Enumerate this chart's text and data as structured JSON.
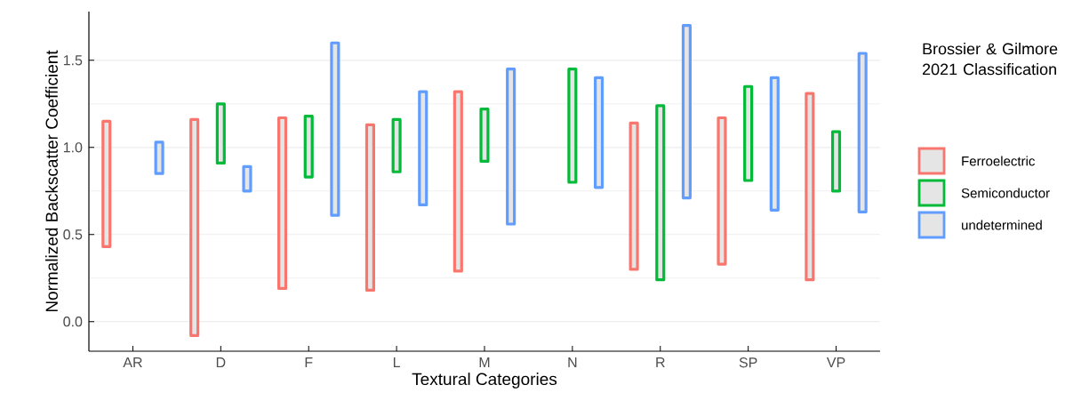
{
  "chart_data": {
    "type": "bar",
    "xlabel": "Textural Categories",
    "ylabel": "Normalized Backscatter Coefficient",
    "legend_title": "Brossier & Gilmore 2021 Classification",
    "categories": [
      "AR",
      "D",
      "F",
      "L",
      "M",
      "N",
      "R",
      "SP",
      "VP"
    ],
    "series": [
      {
        "name": "Ferroelectric",
        "color": "#f8766d",
        "base": [
          0.43,
          -0.08,
          0.19,
          0.18,
          0.29,
          null,
          0.3,
          0.33,
          0.24
        ],
        "values": [
          0.72,
          1.24,
          0.98,
          0.95,
          1.03,
          null,
          0.84,
          0.84,
          1.07
        ]
      },
      {
        "name": "Semiconductor",
        "color": "#00ba38",
        "base": [
          null,
          0.91,
          0.83,
          0.86,
          0.92,
          0.8,
          0.24,
          0.81,
          0.75
        ],
        "values": [
          null,
          0.34,
          0.35,
          0.3,
          0.3,
          0.65,
          1.0,
          0.54,
          0.34
        ]
      },
      {
        "name": "undetermined",
        "color": "#619cff",
        "base": [
          0.85,
          0.75,
          0.61,
          0.67,
          0.56,
          0.77,
          0.71,
          0.64,
          0.63
        ],
        "values": [
          0.18,
          0.14,
          0.99,
          0.65,
          0.89,
          0.63,
          0.99,
          0.76,
          0.91
        ]
      }
    ],
    "ylim": [
      -0.17,
      1.78
    ],
    "yticks": [
      {
        "value": 0,
        "label": "0.0"
      },
      0.5,
      {
        "value": 1,
        "label": "1.0"
      },
      1.5
    ],
    "grid": "y",
    "legend": "right"
  }
}
